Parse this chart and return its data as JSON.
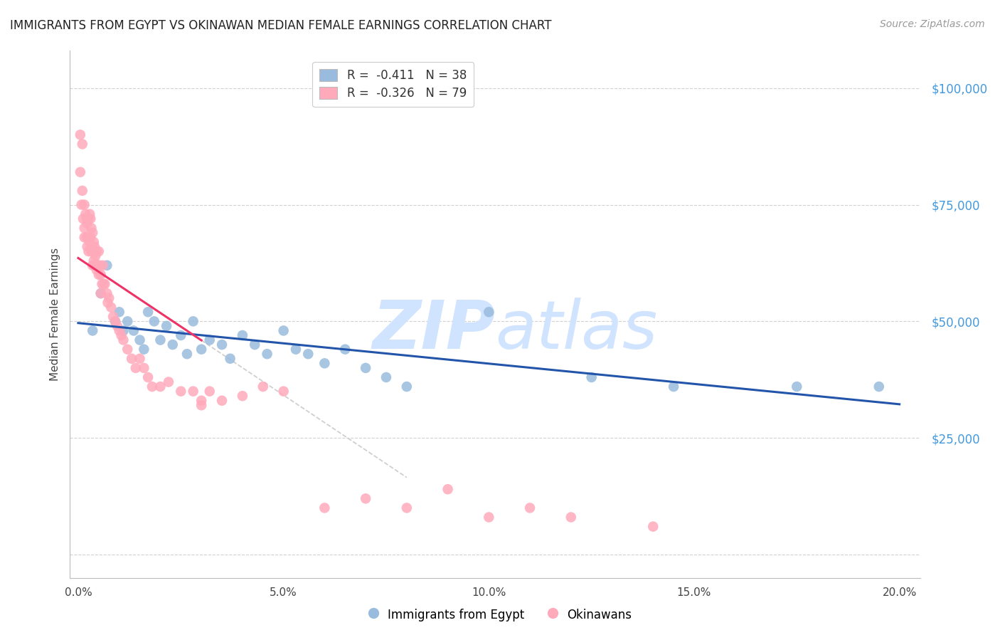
{
  "title": "IMMIGRANTS FROM EGYPT VS OKINAWAN MEDIAN FEMALE EARNINGS CORRELATION CHART",
  "source": "Source: ZipAtlas.com",
  "ylabel": "Median Female Earnings",
  "ytick_vals": [
    0,
    25000,
    50000,
    75000,
    100000
  ],
  "ylim": [
    -5000,
    108000
  ],
  "xlim": [
    -0.2,
    20.5
  ],
  "legend1_label": "R =  -0.411   N = 38",
  "legend2_label": "R =  -0.326   N = 79",
  "series1_name": "Immigrants from Egypt",
  "series2_name": "Okinawans",
  "color_blue": "#99BBDD",
  "color_pink": "#FFAABB",
  "color_blue_line": "#2255AA",
  "color_pink_line": "#EE3366",
  "color_ytick": "#4499DD",
  "watermark_color": "#D0E4FF",
  "background_color": "#FFFFFF",
  "grid_color": "#CCCCCC",
  "egypt_x": [
    0.35,
    0.55,
    0.7,
    0.9,
    1.0,
    1.1,
    1.2,
    1.35,
    1.5,
    1.6,
    1.7,
    1.85,
    2.0,
    2.15,
    2.3,
    2.5,
    2.65,
    2.8,
    3.0,
    3.2,
    3.5,
    3.7,
    4.0,
    4.3,
    4.6,
    5.0,
    5.3,
    5.6,
    6.0,
    6.5,
    7.0,
    7.5,
    8.0,
    10.0,
    12.5,
    14.5,
    17.5,
    19.5
  ],
  "egypt_y": [
    48000,
    56000,
    62000,
    50000,
    52000,
    48000,
    50000,
    48000,
    46000,
    44000,
    52000,
    50000,
    46000,
    49000,
    45000,
    47000,
    43000,
    50000,
    44000,
    46000,
    45000,
    42000,
    47000,
    45000,
    43000,
    48000,
    44000,
    43000,
    41000,
    44000,
    40000,
    38000,
    36000,
    52000,
    38000,
    36000,
    36000,
    36000
  ],
  "okinawa_x": [
    0.05,
    0.05,
    0.08,
    0.1,
    0.1,
    0.12,
    0.15,
    0.15,
    0.15,
    0.18,
    0.2,
    0.2,
    0.22,
    0.22,
    0.25,
    0.25,
    0.25,
    0.28,
    0.28,
    0.3,
    0.3,
    0.32,
    0.32,
    0.35,
    0.35,
    0.35,
    0.38,
    0.38,
    0.4,
    0.4,
    0.42,
    0.45,
    0.45,
    0.48,
    0.5,
    0.5,
    0.52,
    0.55,
    0.55,
    0.58,
    0.6,
    0.62,
    0.65,
    0.7,
    0.72,
    0.75,
    0.8,
    0.85,
    0.9,
    0.95,
    1.0,
    1.05,
    1.1,
    1.2,
    1.3,
    1.4,
    1.5,
    1.6,
    1.7,
    1.8,
    2.0,
    2.2,
    2.5,
    2.8,
    3.0,
    3.2,
    3.5,
    4.0,
    4.5,
    5.0,
    6.0,
    7.0,
    8.0,
    9.0,
    10.0,
    11.0,
    12.0,
    14.0,
    3.0
  ],
  "okinawa_y": [
    90000,
    82000,
    75000,
    88000,
    78000,
    72000,
    75000,
    70000,
    68000,
    73000,
    72000,
    68000,
    71000,
    66000,
    72000,
    68000,
    65000,
    73000,
    67000,
    72000,
    68000,
    70000,
    65000,
    69000,
    65000,
    62000,
    67000,
    63000,
    66000,
    62000,
    64000,
    65000,
    61000,
    62000,
    65000,
    60000,
    62000,
    60000,
    56000,
    58000,
    62000,
    58000,
    58000,
    56000,
    54000,
    55000,
    53000,
    51000,
    50000,
    49000,
    48000,
    47000,
    46000,
    44000,
    42000,
    40000,
    42000,
    40000,
    38000,
    36000,
    36000,
    37000,
    35000,
    35000,
    33000,
    35000,
    33000,
    34000,
    36000,
    35000,
    10000,
    12000,
    10000,
    14000,
    8000,
    10000,
    8000,
    6000,
    32000
  ]
}
